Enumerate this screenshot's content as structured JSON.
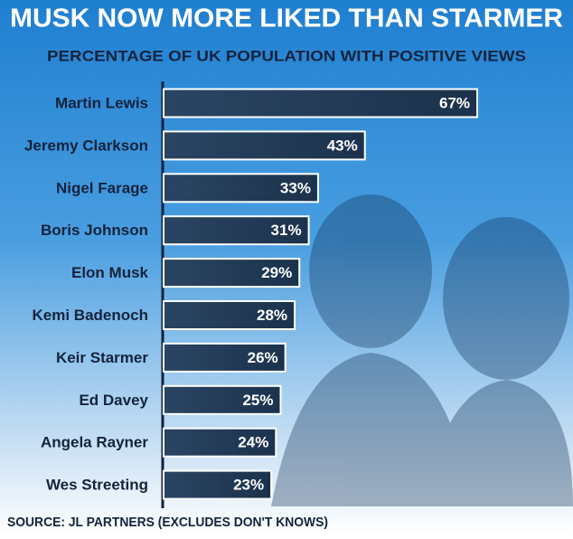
{
  "chart_data": {
    "type": "bar",
    "orientation": "horizontal",
    "title": "MUSK NOW MORE LIKED THAN STARMER",
    "subtitle": "PERCENTAGE OF UK POPULATION WITH POSITIVE VIEWS",
    "categories": [
      "Martin Lewis",
      "Jeremy Clarkson",
      "Nigel Farage",
      "Boris Johnson",
      "Elon Musk",
      "Kemi Badenoch",
      "Keir Starmer",
      "Ed Davey",
      "Angela Rayner",
      "Wes Streeting"
    ],
    "values": [
      67,
      43,
      33,
      31,
      29,
      28,
      26,
      25,
      24,
      23
    ],
    "value_labels": [
      "67%",
      "43%",
      "33%",
      "31%",
      "29%",
      "28%",
      "26%",
      "25%",
      "24%",
      "23%"
    ],
    "color": "#243c58",
    "source": "SOURCE: JL PARTNERS (EXCLUDES DON'T KNOWS)"
  }
}
